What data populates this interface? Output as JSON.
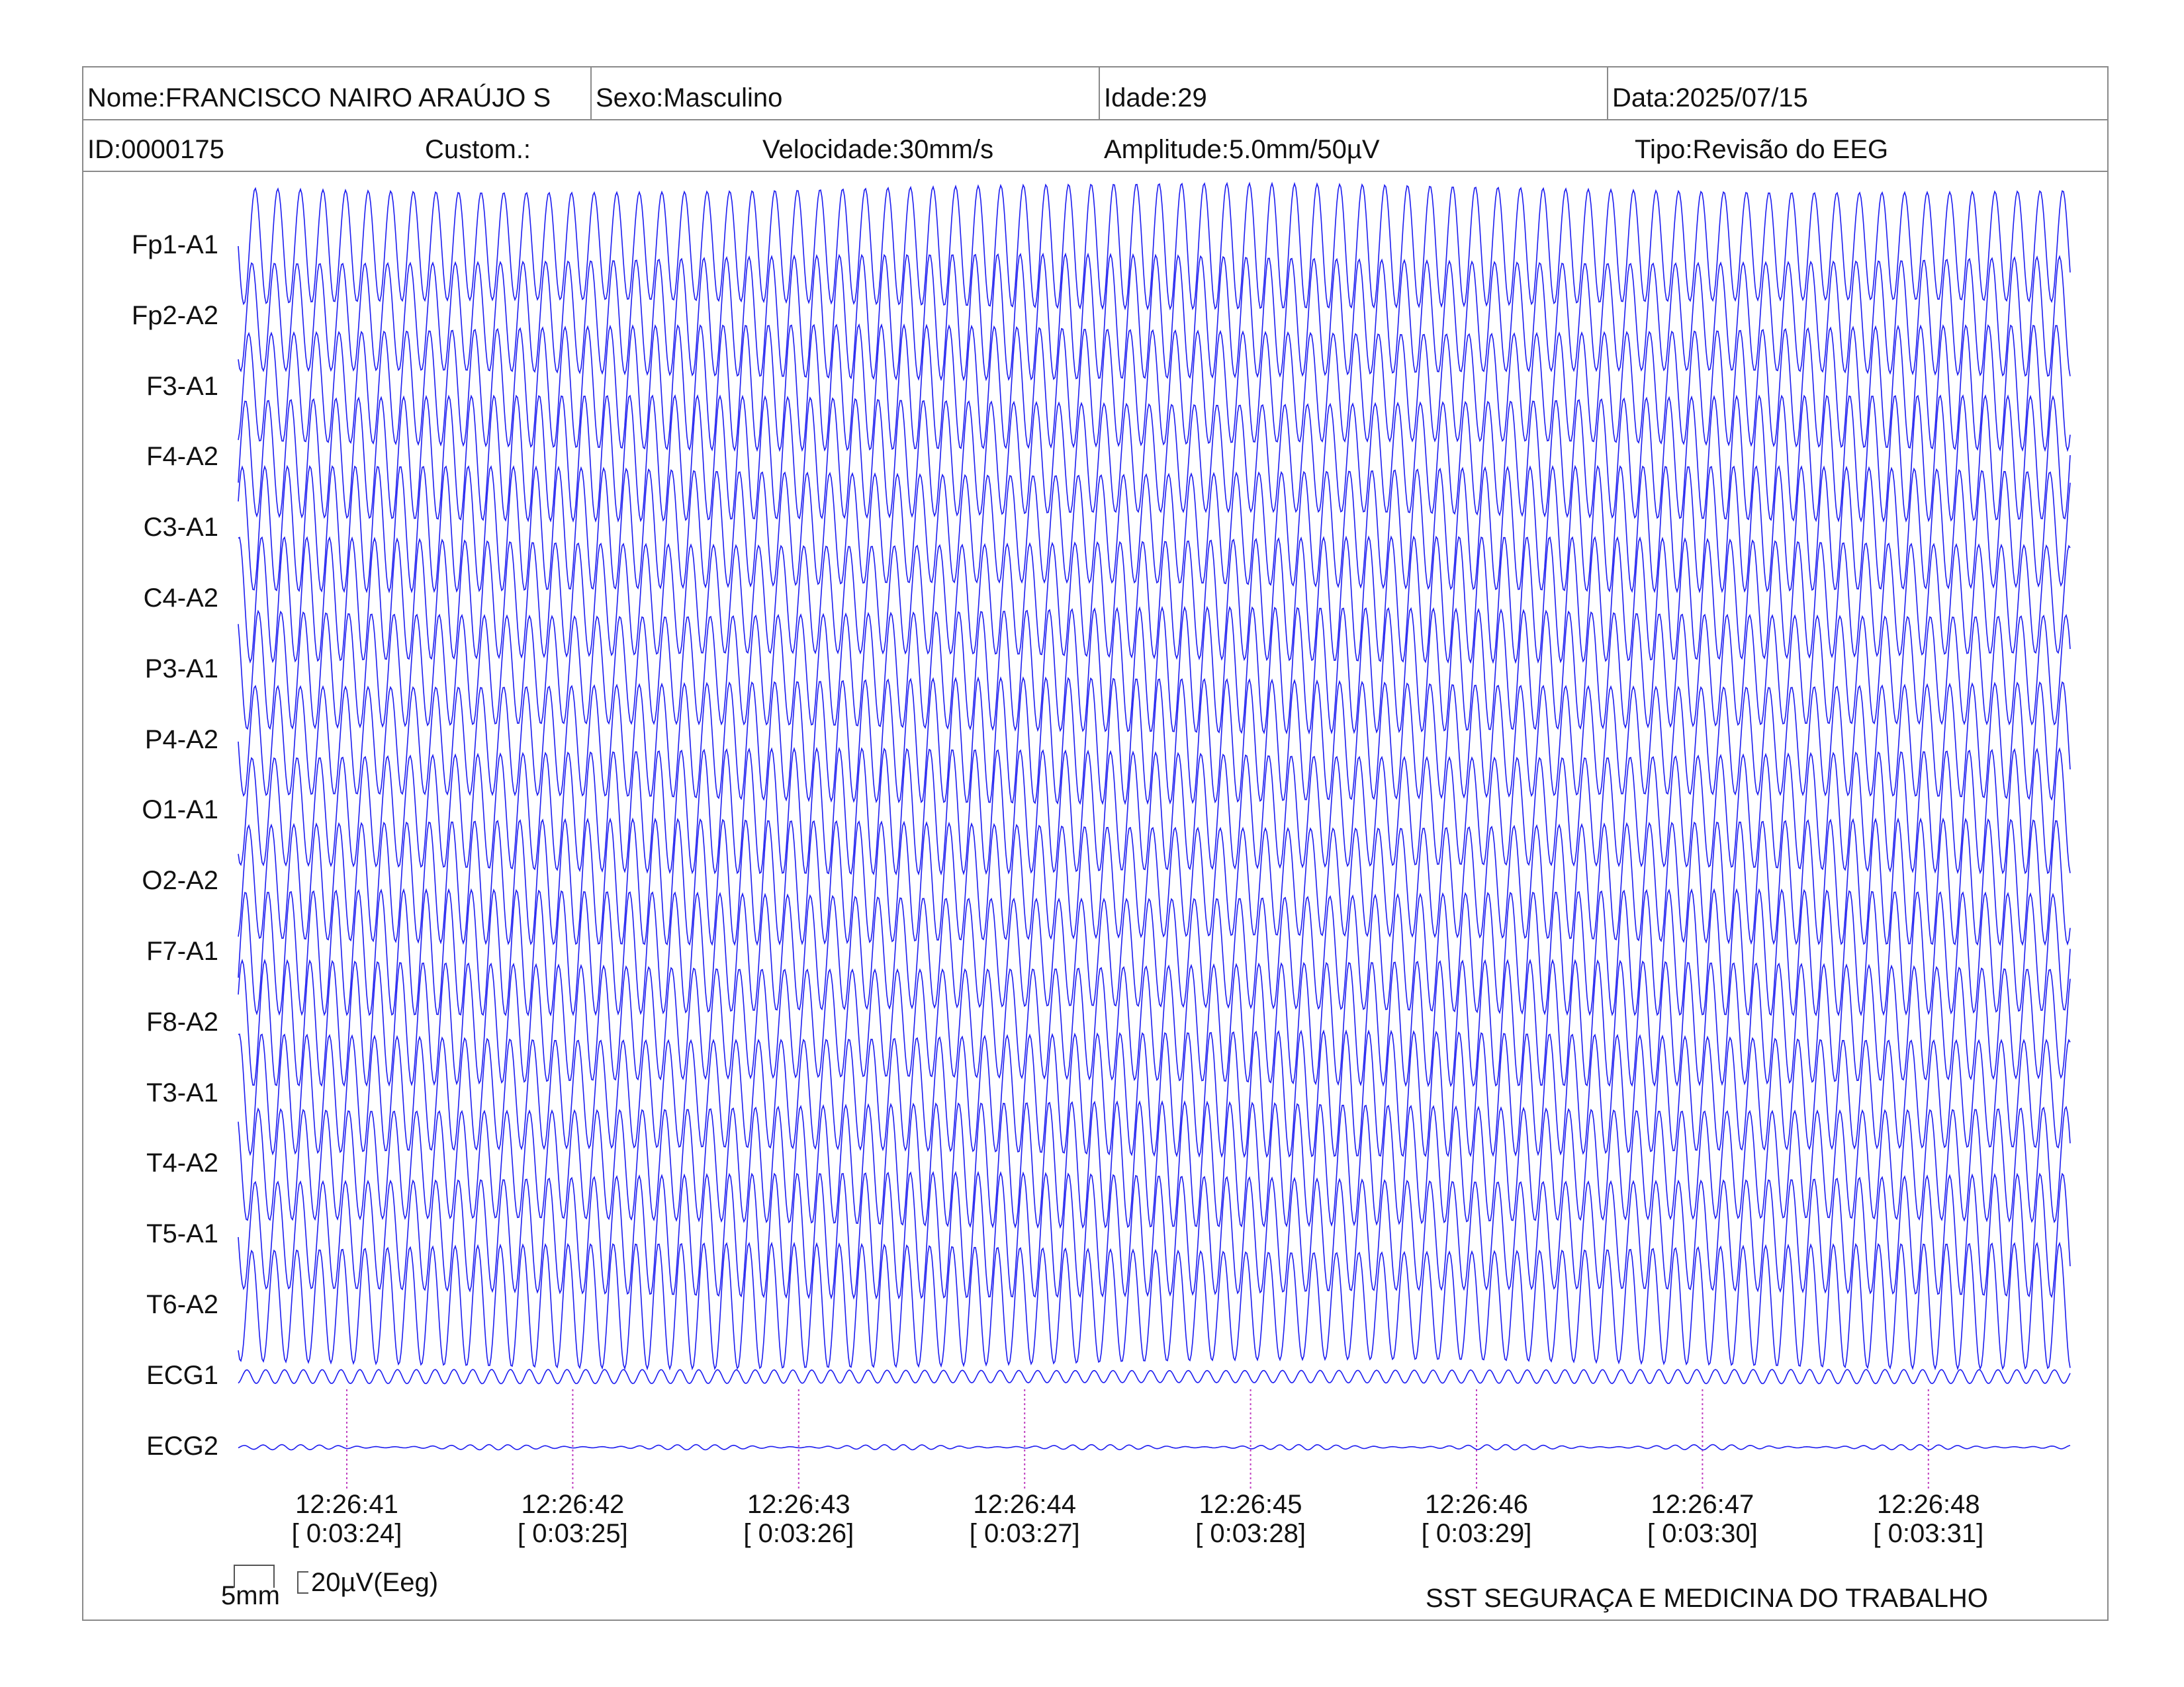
{
  "header": {
    "nome": "Nome:FRANCISCO NAIRO ARAÚJO S",
    "sexo": "Sexo:Masculino",
    "idade": "Idade:29",
    "data": "Data:2025/07/15",
    "id": "ID:0000175",
    "custom": "Custom.:",
    "velocidade": "Velocidade:30mm/s",
    "amplitude": "Amplitude:5.0mm/50µV",
    "tipo": "Tipo:Revisão do EEG"
  },
  "colors": {
    "trace": "#1c1cf0",
    "marker": "#c040c0",
    "border": "#8a8a8a"
  },
  "scale": {
    "time_bar": "5mm",
    "amp_bar": "20µV(Eeg)"
  },
  "footer_text": "SST SEGURAÇA E MEDICINA DO TRABALHO",
  "chart_data": {
    "type": "line",
    "channels": [
      "Fp1-A1",
      "Fp2-A2",
      "F3-A1",
      "F4-A2",
      "C3-A1",
      "C4-A2",
      "P3-A1",
      "P4-A2",
      "O1-A1",
      "O2-A2",
      "F7-A1",
      "F8-A2",
      "T3-A1",
      "T4-A2",
      "T5-A1",
      "T6-A2",
      "ECG1",
      "ECG2"
    ],
    "time_marks": [
      {
        "clock": "12:26:41",
        "elapsed": "[ 0:03:24]"
      },
      {
        "clock": "12:26:42",
        "elapsed": "[ 0:03:25]"
      },
      {
        "clock": "12:26:43",
        "elapsed": "[ 0:03:26]"
      },
      {
        "clock": "12:26:44",
        "elapsed": "[ 0:03:27]"
      },
      {
        "clock": "12:26:45",
        "elapsed": "[ 0:03:28]"
      },
      {
        "clock": "12:26:46",
        "elapsed": "[ 0:03:29]"
      },
      {
        "clock": "12:26:47",
        "elapsed": "[ 0:03:30]"
      },
      {
        "clock": "12:26:48",
        "elapsed": "[ 0:03:31]"
      }
    ],
    "eeg_oscillation_hz": 10,
    "ecg_oscillation_hz": 12
  }
}
